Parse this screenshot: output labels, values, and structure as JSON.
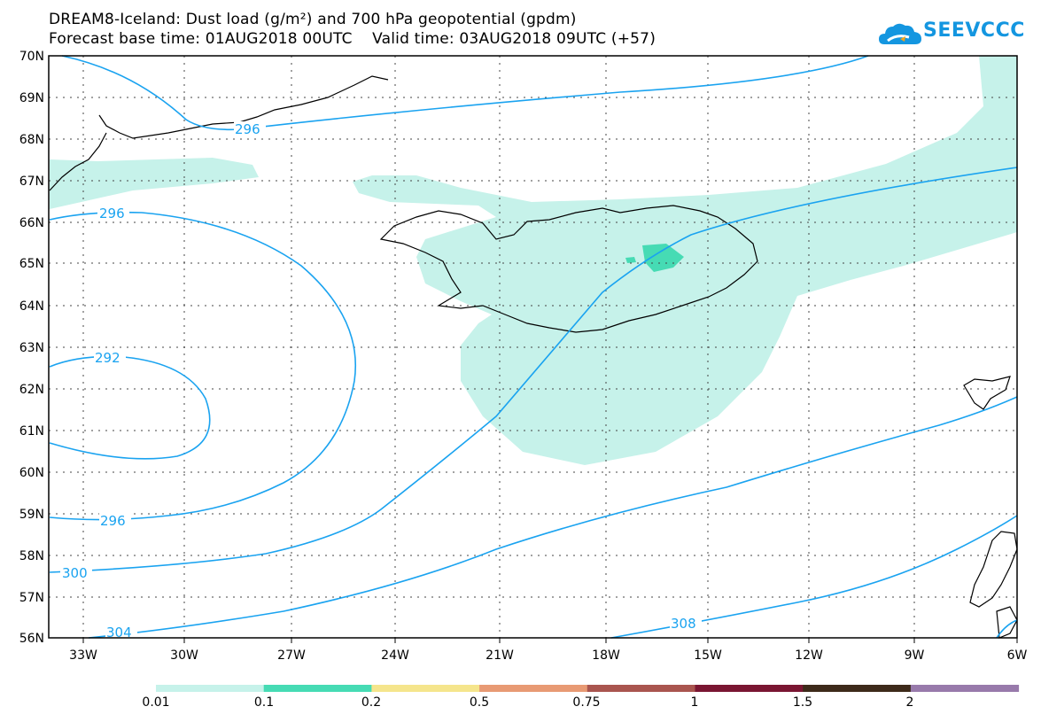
{
  "title": {
    "line1": "DREAM8-Iceland: Dust load (g/m²) and 700 hPa geopotential (gpdm)",
    "line2": "Forecast base time: 01AUG2018 00UTC    Valid time: 03AUG2018 09UTC (+57)"
  },
  "logo": {
    "text": "SEEVCCC"
  },
  "map": {
    "lon_range": [
      -34.5,
      -6
    ],
    "lat_range": [
      56,
      70
    ],
    "lon_ticks": [
      "33W",
      "30W",
      "27W",
      "24W",
      "21W",
      "18W",
      "15W",
      "12W",
      "9W",
      "6W"
    ],
    "lat_ticks": [
      "70N",
      "69N",
      "68N",
      "67N",
      "66N",
      "65N",
      "64N",
      "63N",
      "62N",
      "61N",
      "60N",
      "59N",
      "58N",
      "57N",
      "56N"
    ],
    "contour_labels": [
      "296",
      "296",
      "292",
      "296",
      "300",
      "304",
      "308"
    ],
    "contour_color": "#1aa3f0",
    "coast_color": "#000000"
  },
  "colorbar": {
    "labels": [
      "0.01",
      "0.1",
      "0.2",
      "0.5",
      "0.75",
      "1",
      "1.5",
      "2"
    ],
    "colors": [
      "#c6f2ea",
      "#46dbb4",
      "#f5e58c",
      "#e89a74",
      "#a9554f",
      "#7a1632",
      "#3d2a1a",
      "#987aab"
    ]
  }
}
